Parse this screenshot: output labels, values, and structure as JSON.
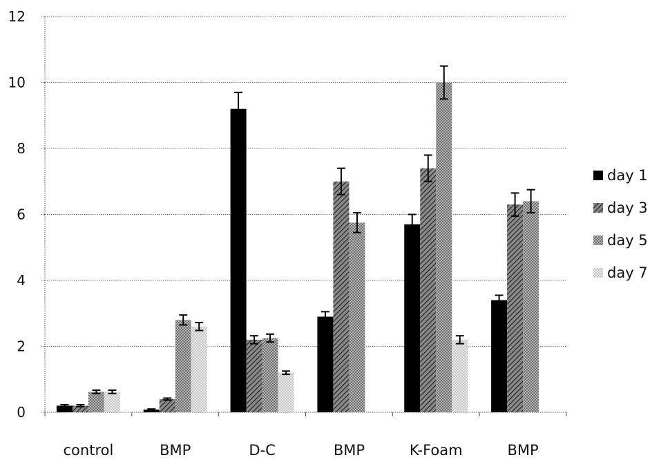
{
  "chart_data": {
    "type": "bar",
    "categories": [
      "control",
      "BMP",
      "D-C",
      "BMP",
      "K-Foam",
      "BMP"
    ],
    "series": [
      {
        "name": "day 1",
        "values": [
          0.2,
          0.08,
          9.2,
          2.9,
          5.7,
          3.4
        ],
        "errors": [
          0.03,
          0.02,
          0.5,
          0.15,
          0.3,
          0.15
        ],
        "color": "#000000",
        "pattern": "solid"
      },
      {
        "name": "day 3",
        "values": [
          0.2,
          0.4,
          2.2,
          7.0,
          7.4,
          6.3
        ],
        "errors": [
          0.03,
          0.03,
          0.12,
          0.4,
          0.4,
          0.35
        ],
        "color": "#555555",
        "pattern": "diagonal"
      },
      {
        "name": "day 5",
        "values": [
          0.62,
          2.8,
          2.25,
          5.75,
          10.0,
          6.4
        ],
        "errors": [
          0.05,
          0.15,
          0.12,
          0.3,
          0.5,
          0.35
        ],
        "color": "#999999",
        "pattern": "dots-dense"
      },
      {
        "name": "day 7",
        "values": [
          0.62,
          2.6,
          1.2,
          null,
          2.2,
          null
        ],
        "errors": [
          0.05,
          0.12,
          0.05,
          null,
          0.12,
          null
        ],
        "color": "#cfcfcf",
        "pattern": "dots-light"
      }
    ],
    "y_ticks": [
      "0",
      "2",
      "4",
      "6",
      "8",
      "10",
      "12"
    ],
    "ylim": [
      0,
      12
    ],
    "grid": true,
    "legend_position": "right"
  }
}
